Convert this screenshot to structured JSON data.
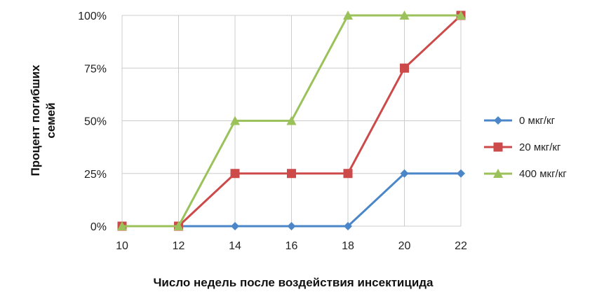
{
  "chart_data": {
    "type": "line",
    "title": "",
    "xlabel": "Число недель после воздействия инсектицида",
    "ylabel_lines": [
      "Процент погибших",
      "семей"
    ],
    "x": [
      10,
      12,
      14,
      16,
      18,
      20,
      22
    ],
    "x_ticks": [
      "10",
      "12",
      "14",
      "16",
      "18",
      "20",
      "22"
    ],
    "xlim": [
      10,
      22
    ],
    "y_ticks": [
      "0%",
      "25%",
      "50%",
      "75%",
      "100%"
    ],
    "ylim": [
      0,
      100
    ],
    "y_unit": "%",
    "grid": true,
    "legend_position": "right",
    "series": [
      {
        "name": "0 мкг/кг",
        "color": "#4a86c8",
        "marker": "diamond",
        "values": [
          0,
          0,
          0,
          0,
          0,
          25,
          25
        ]
      },
      {
        "name": "20 мкг/кг",
        "color": "#cd4a4a",
        "marker": "square",
        "values": [
          0,
          0,
          25,
          25,
          25,
          75,
          100
        ]
      },
      {
        "name": "400 мкг/кг",
        "color": "#9bc25a",
        "marker": "triangle",
        "values": [
          0,
          0,
          50,
          50,
          100,
          100,
          100
        ]
      }
    ]
  }
}
